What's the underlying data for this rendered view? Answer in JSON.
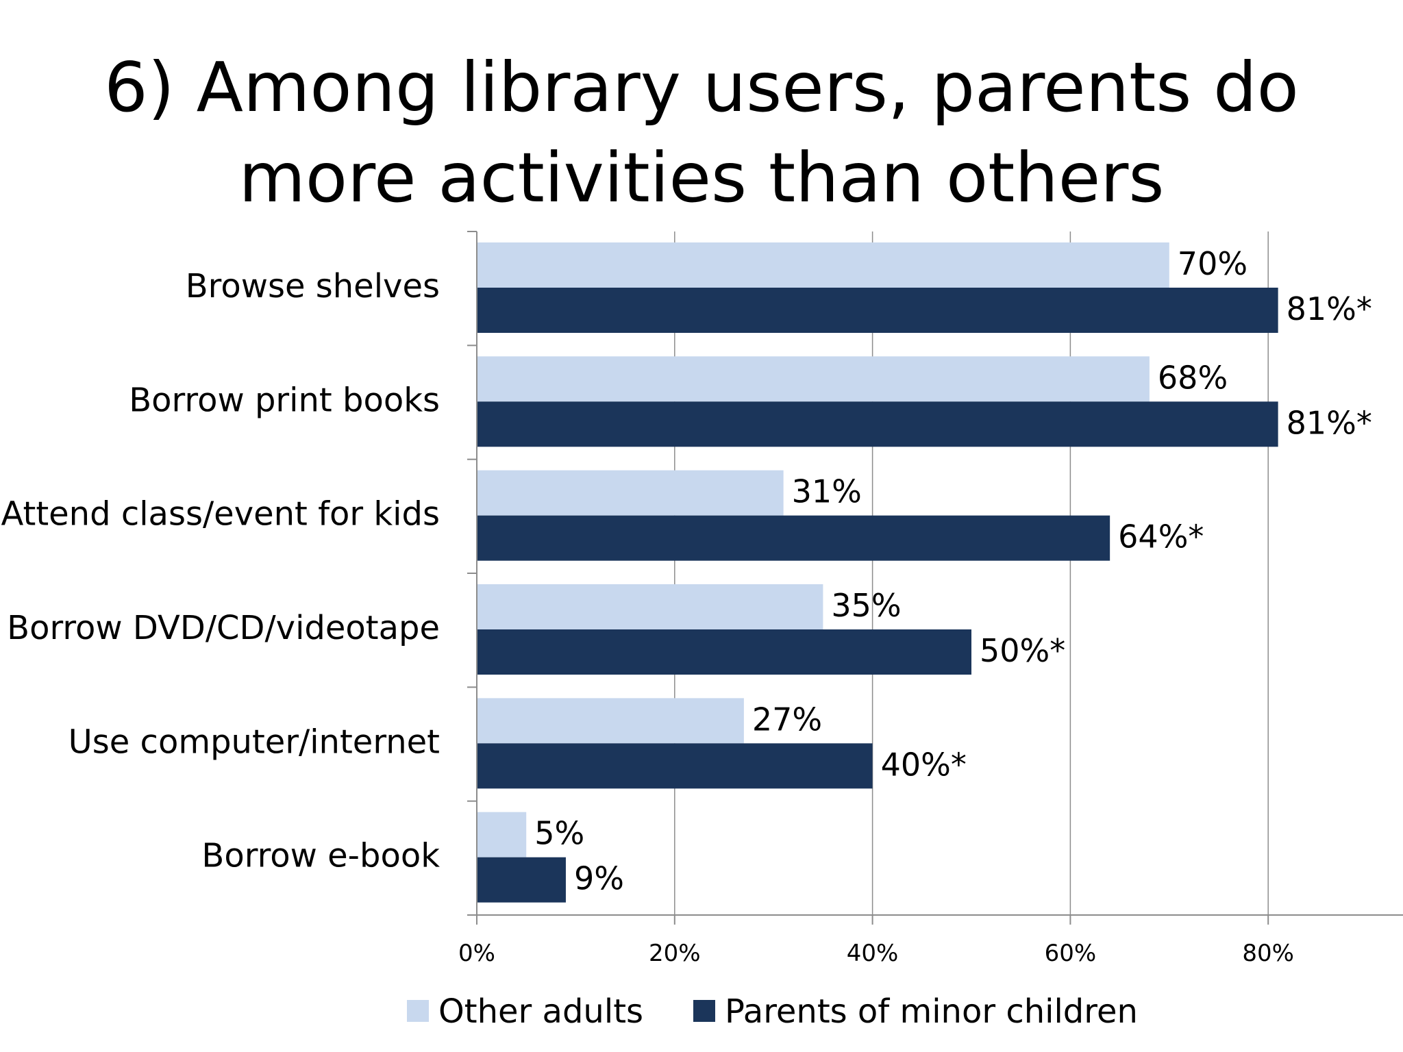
{
  "title_lines": [
    "6) Among library users, parents do",
    "more activities than others"
  ],
  "chart_data": {
    "type": "bar",
    "orientation": "horizontal",
    "title": "6) Among library users, parents do more activities than others",
    "categories": [
      "Browse shelves",
      "Borrow print books",
      "Attend class/event for kids",
      "Borrow DVD/CD/videotape",
      "Use computer/internet",
      "Borrow e-book"
    ],
    "series": [
      {
        "name": "Other adults",
        "color": "#c8d8ee",
        "values": [
          70,
          68,
          31,
          35,
          27,
          5
        ],
        "labels": [
          "70%",
          "68%",
          "31%",
          "35%",
          "27%",
          "5%"
        ]
      },
      {
        "name": "Parents of minor children",
        "color": "#1b355a",
        "values": [
          81,
          81,
          64,
          50,
          40,
          9
        ],
        "labels": [
          "81%*",
          "81%*",
          "64%*",
          "50%*",
          "40%*",
          "9%"
        ]
      }
    ],
    "x_ticks": [
      "0%",
      "20%",
      "40%",
      "60%",
      "80%"
    ],
    "x_tick_values": [
      0,
      20,
      40,
      60,
      80
    ],
    "xlim": [
      0,
      94
    ],
    "grid": true,
    "legend_position": "bottom"
  }
}
